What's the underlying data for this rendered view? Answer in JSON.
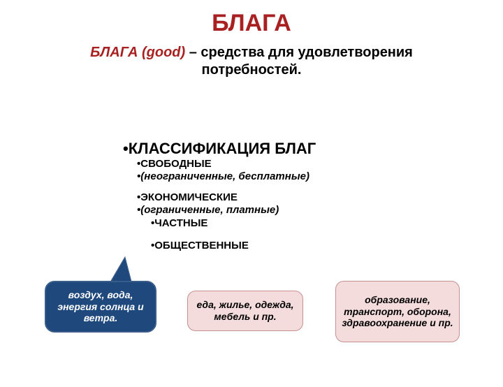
{
  "title": "БЛАГА",
  "subtitle": {
    "term": "БЛАГА (good)",
    "rest_line1": " – средства для удовлетворения",
    "rest_line2": "потребностей."
  },
  "classification": {
    "head": "КЛАССИФИКАЦИЯ БЛАГ",
    "free": "СВОБОДНЫЕ",
    "free_note": "(неограниченные, бесплатные)",
    "economic": "ЭКОНОМИЧЕСКИЕ",
    "economic_note": "(ограниченные, платные)",
    "private": "ЧАСТНЫЕ",
    "public": "ОБЩЕСТВЕННЫЕ"
  },
  "callout": "воздух, вода, энергия солнца и ветра.",
  "box_mid": "еда, жилье, одежда, мебель и пр.",
  "box_right": "образование, транспорт, оборона, здравоохранение и пр.",
  "colors": {
    "title": "#a82020",
    "callout_bg": "#1f497d",
    "callout_border": "#385d8a",
    "box_bg": "#f5dcdc",
    "box_border": "#c59090",
    "page_bg": "#ffffff"
  }
}
